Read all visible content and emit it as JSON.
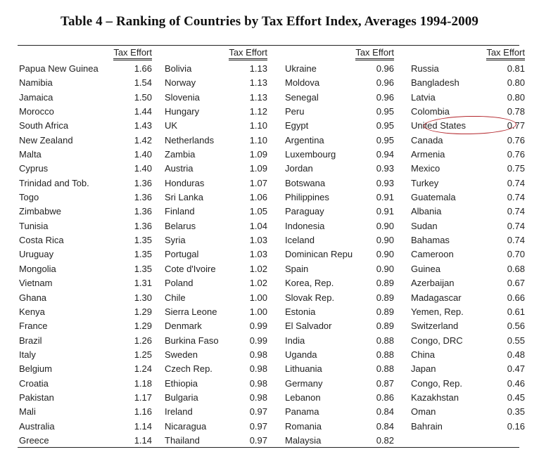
{
  "title": "Table 4 – Ranking of Countries by Tax Effort Index, Averages 1994-2009",
  "column_header": "Tax Effort",
  "highlight": {
    "country": "United States",
    "value": "0.77",
    "color": "#b3262c"
  },
  "columns": [
    {
      "header": "Tax Effort",
      "rows": [
        {
          "country": "Papua New Guinea",
          "value": "1.66"
        },
        {
          "country": "Namibia",
          "value": "1.54"
        },
        {
          "country": "Jamaica",
          "value": "1.50"
        },
        {
          "country": "Morocco",
          "value": "1.44"
        },
        {
          "country": "South Africa",
          "value": "1.43"
        },
        {
          "country": "New Zealand",
          "value": "1.42"
        },
        {
          "country": "Malta",
          "value": "1.40"
        },
        {
          "country": "Cyprus",
          "value": "1.40"
        },
        {
          "country": "Trinidad and Tob.",
          "value": "1.36"
        },
        {
          "country": "Togo",
          "value": "1.36"
        },
        {
          "country": "Zimbabwe",
          "value": "1.36"
        },
        {
          "country": "Tunisia",
          "value": "1.36"
        },
        {
          "country": "Costa Rica",
          "value": "1.35"
        },
        {
          "country": "Uruguay",
          "value": "1.35"
        },
        {
          "country": "Mongolia",
          "value": "1.35"
        },
        {
          "country": "Vietnam",
          "value": "1.31"
        },
        {
          "country": "Ghana",
          "value": "1.30"
        },
        {
          "country": "Kenya",
          "value": "1.29"
        },
        {
          "country": "France",
          "value": "1.29"
        },
        {
          "country": "Brazil",
          "value": "1.26"
        },
        {
          "country": "Italy",
          "value": "1.25"
        },
        {
          "country": "Belgium",
          "value": "1.24"
        },
        {
          "country": "Croatia",
          "value": "1.18"
        },
        {
          "country": "Pakistan",
          "value": "1.17"
        },
        {
          "country": "Mali",
          "value": "1.16"
        },
        {
          "country": "Australia",
          "value": "1.14"
        },
        {
          "country": "Greece",
          "value": "1.14"
        }
      ]
    },
    {
      "header": "Tax Effort",
      "rows": [
        {
          "country": "Bolivia",
          "value": "1.13"
        },
        {
          "country": "Norway",
          "value": "1.13"
        },
        {
          "country": "Slovenia",
          "value": "1.13"
        },
        {
          "country": "Hungary",
          "value": "1.12"
        },
        {
          "country": "UK",
          "value": "1.10"
        },
        {
          "country": "Netherlands",
          "value": "1.10"
        },
        {
          "country": "Zambia",
          "value": "1.09"
        },
        {
          "country": "Austria",
          "value": "1.09"
        },
        {
          "country": "Honduras",
          "value": "1.07"
        },
        {
          "country": "Sri Lanka",
          "value": "1.06"
        },
        {
          "country": "Finland",
          "value": "1.05"
        },
        {
          "country": "Belarus",
          "value": "1.04"
        },
        {
          "country": "Syria",
          "value": "1.03"
        },
        {
          "country": "Portugal",
          "value": "1.03"
        },
        {
          "country": "Cote d'Ivoire",
          "value": "1.02"
        },
        {
          "country": "Poland",
          "value": "1.02"
        },
        {
          "country": "Chile",
          "value": "1.00"
        },
        {
          "country": "Sierra Leone",
          "value": "1.00"
        },
        {
          "country": "Denmark",
          "value": "0.99"
        },
        {
          "country": "Burkina Faso",
          "value": "0.99"
        },
        {
          "country": "Sweden",
          "value": "0.98"
        },
        {
          "country": "Czech Rep.",
          "value": "0.98"
        },
        {
          "country": "Ethiopia",
          "value": "0.98"
        },
        {
          "country": "Bulgaria",
          "value": "0.98"
        },
        {
          "country": "Ireland",
          "value": "0.97"
        },
        {
          "country": "Nicaragua",
          "value": "0.97"
        },
        {
          "country": "Thailand",
          "value": "0.97"
        }
      ]
    },
    {
      "header": "Tax Effort",
      "rows": [
        {
          "country": "Ukraine",
          "value": "0.96"
        },
        {
          "country": "Moldova",
          "value": "0.96"
        },
        {
          "country": "Senegal",
          "value": "0.96"
        },
        {
          "country": "Peru",
          "value": "0.95"
        },
        {
          "country": "Egypt",
          "value": "0.95"
        },
        {
          "country": "Argentina",
          "value": "0.95"
        },
        {
          "country": "Luxembourg",
          "value": "0.94"
        },
        {
          "country": "Jordan",
          "value": "0.93"
        },
        {
          "country": "Botswana",
          "value": "0.93"
        },
        {
          "country": "Philippines",
          "value": "0.91"
        },
        {
          "country": "Paraguay",
          "value": "0.91"
        },
        {
          "country": "Indonesia",
          "value": "0.90"
        },
        {
          "country": "Iceland",
          "value": "0.90"
        },
        {
          "country": "Dominican Repu",
          "value": "0.90"
        },
        {
          "country": "Spain",
          "value": "0.90"
        },
        {
          "country": "Korea, Rep.",
          "value": "0.89"
        },
        {
          "country": "Slovak Rep.",
          "value": "0.89"
        },
        {
          "country": "Estonia",
          "value": "0.89"
        },
        {
          "country": "El Salvador",
          "value": "0.89"
        },
        {
          "country": "India",
          "value": "0.88"
        },
        {
          "country": "Uganda",
          "value": "0.88"
        },
        {
          "country": "Lithuania",
          "value": "0.88"
        },
        {
          "country": "Germany",
          "value": "0.87"
        },
        {
          "country": "Lebanon",
          "value": "0.86"
        },
        {
          "country": "Panama",
          "value": "0.84"
        },
        {
          "country": "Romania",
          "value": "0.84"
        },
        {
          "country": "Malaysia",
          "value": "0.82"
        }
      ]
    },
    {
      "header": "Tax Effort",
      "rows": [
        {
          "country": "Russia",
          "value": "0.81"
        },
        {
          "country": "Bangladesh",
          "value": "0.80"
        },
        {
          "country": "Latvia",
          "value": "0.80"
        },
        {
          "country": "Colombia",
          "value": "0.78"
        },
        {
          "country": "United States",
          "value": "0.77"
        },
        {
          "country": "Canada",
          "value": "0.76"
        },
        {
          "country": "Armenia",
          "value": "0.76"
        },
        {
          "country": "Mexico",
          "value": "0.75"
        },
        {
          "country": "Turkey",
          "value": "0.74"
        },
        {
          "country": "Guatemala",
          "value": "0.74"
        },
        {
          "country": "Albania",
          "value": "0.74"
        },
        {
          "country": "Sudan",
          "value": "0.74"
        },
        {
          "country": "Bahamas",
          "value": "0.74"
        },
        {
          "country": "Cameroon",
          "value": "0.70"
        },
        {
          "country": "Guinea",
          "value": "0.68"
        },
        {
          "country": "Azerbaijan",
          "value": "0.67"
        },
        {
          "country": "Madagascar",
          "value": "0.66"
        },
        {
          "country": "Yemen, Rep.",
          "value": "0.61"
        },
        {
          "country": "Switzerland",
          "value": "0.56"
        },
        {
          "country": "Congo, DRC",
          "value": "0.55"
        },
        {
          "country": "China",
          "value": "0.48"
        },
        {
          "country": "Japan",
          "value": "0.47"
        },
        {
          "country": "Congo, Rep.",
          "value": "0.46"
        },
        {
          "country": "Kazakhstan",
          "value": "0.45"
        },
        {
          "country": "Oman",
          "value": "0.35"
        },
        {
          "country": "Bahrain",
          "value": "0.16"
        }
      ]
    }
  ]
}
